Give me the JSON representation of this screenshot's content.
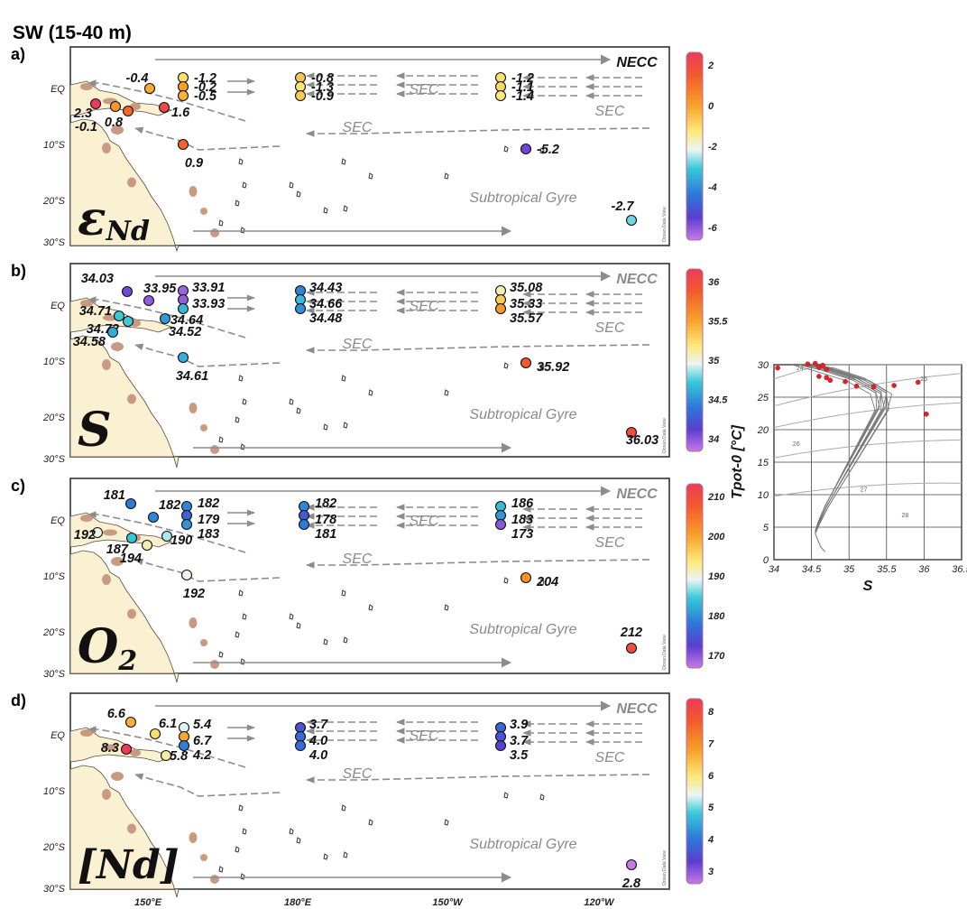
{
  "figure_title": "SW (15-40 m)",
  "colors": {
    "land": "#faf0d2",
    "island": "#c89a82",
    "current": "#8c8c8c",
    "frame": "#333333"
  },
  "chart_data": [
    {
      "type": "scatter",
      "panel": "a)",
      "variable_label": "εNd",
      "x_ticks": [
        "150°E",
        "180°E",
        "150°W",
        "120°W"
      ],
      "y_ticks": [
        "EQ",
        "10°S",
        "20°S",
        "30°S"
      ],
      "colorbar": {
        "ticks": [
          "2",
          "0",
          "-2",
          "-4",
          "-6"
        ],
        "range": [
          -6,
          2
        ],
        "colormap": "Ocean Data View rainbow"
      },
      "current_labels": [
        "NECC",
        "SEC",
        "SEC",
        "SEC",
        "Subtropical Gyre"
      ],
      "values": [
        "-0.4",
        "-1.2",
        "-0.2",
        "-0.5",
        "-0.8",
        "-1.3",
        "-0.9",
        "-1.2",
        "-1.1",
        "-1.4",
        "2.3",
        "0.8",
        "-0.1",
        "1.6",
        "0.9",
        "-5.2",
        "-2.7"
      ],
      "numeric_values": [
        -0.4,
        -1.2,
        -0.2,
        -0.5,
        -0.8,
        -1.3,
        -0.9,
        -1.2,
        -1.1,
        -1.4,
        2.3,
        0.8,
        -0.1,
        1.6,
        0.9,
        -5.2,
        -2.7
      ]
    },
    {
      "type": "scatter",
      "panel": "b)",
      "variable_label": "S",
      "x_ticks": [
        "150°E",
        "180°E",
        "150°W",
        "120°W"
      ],
      "y_ticks": [
        "EQ",
        "10°S",
        "20°S",
        "30°S"
      ],
      "colorbar": {
        "ticks": [
          "36",
          "35.5",
          "35",
          "34.5",
          "34"
        ],
        "range": [
          33.8,
          36.2
        ],
        "colormap": "Ocean Data View rainbow"
      },
      "current_labels": [
        "NECC",
        "SEC",
        "SEC",
        "SEC",
        "Subtropical Gyre"
      ],
      "values": [
        "34.03",
        "33.95",
        "33.91",
        "33.93",
        "34.64",
        "34.43",
        "34.66",
        "34.48",
        "35.08",
        "35.33",
        "35.57",
        "34.71",
        "34.72",
        "34.58",
        "34.52",
        "34.61",
        "35.92",
        "36.03"
      ],
      "numeric_values": [
        34.03,
        33.95,
        33.91,
        33.93,
        34.64,
        34.43,
        34.66,
        34.48,
        35.08,
        35.33,
        35.57,
        34.71,
        34.72,
        34.58,
        34.52,
        34.61,
        35.92,
        36.03
      ]
    },
    {
      "type": "scatter",
      "panel": "c)",
      "variable_label": "O2",
      "x_ticks": [
        "150°E",
        "180°E",
        "150°W",
        "120°W"
      ],
      "y_ticks": [
        "EQ",
        "10°S",
        "20°S",
        "30°S"
      ],
      "colorbar": {
        "ticks": [
          "210",
          "200",
          "190",
          "180",
          "170"
        ],
        "range": [
          170,
          215
        ],
        "colormap": "Ocean Data View rainbow"
      },
      "current_labels": [
        "NECC",
        "SEC",
        "SEC",
        "SEC",
        "Subtropical Gyre"
      ],
      "values": [
        "181",
        "182",
        "182",
        "179",
        "183",
        "182",
        "178",
        "181",
        "186",
        "183",
        "173",
        "192",
        "187",
        "194",
        "190",
        "192",
        "204",
        "212"
      ],
      "numeric_values": [
        181,
        182,
        182,
        179,
        183,
        182,
        178,
        181,
        186,
        183,
        173,
        192,
        187,
        194,
        190,
        192,
        204,
        212
      ]
    },
    {
      "type": "scatter",
      "panel": "d)",
      "variable_label": "[Nd]",
      "x_ticks": [
        "150°E",
        "180°E",
        "150°W",
        "120°W"
      ],
      "y_ticks": [
        "EQ",
        "10°S",
        "20°S",
        "30°S"
      ],
      "colorbar": {
        "ticks": [
          "8",
          "7",
          "6",
          "5",
          "4",
          "3"
        ],
        "range": [
          2.8,
          8.3
        ],
        "colormap": "Ocean Data View rainbow"
      },
      "current_labels": [
        "NECC",
        "SEC",
        "SEC",
        "SEC",
        "Subtropical Gyre"
      ],
      "values": [
        "6.6",
        "6.1",
        "5.4",
        "6.7",
        "4.2",
        "3.7",
        "4.0",
        "4.0",
        "3.9",
        "3.7",
        "3.5",
        "8.3",
        "5.8",
        "2.8"
      ],
      "numeric_values": [
        6.6,
        6.1,
        5.4,
        6.7,
        4.2,
        3.7,
        4.0,
        4.0,
        3.9,
        3.7,
        3.5,
        8.3,
        5.8,
        2.8
      ]
    },
    {
      "type": "scatter",
      "panel": "T-S diagram",
      "xlabel": "S",
      "ylabel": "Tpot-0 [°C]",
      "xlim": [
        34,
        36.5
      ],
      "ylim": [
        0,
        30
      ],
      "x_ticks": [
        "34",
        "34.5",
        "35",
        "35.5",
        "36",
        "36.5"
      ],
      "y_ticks": [
        "0",
        "5",
        "10",
        "15",
        "20",
        "25",
        "30"
      ],
      "isopycnals": [
        "24",
        "25",
        "26",
        "27",
        "28"
      ]
    }
  ]
}
